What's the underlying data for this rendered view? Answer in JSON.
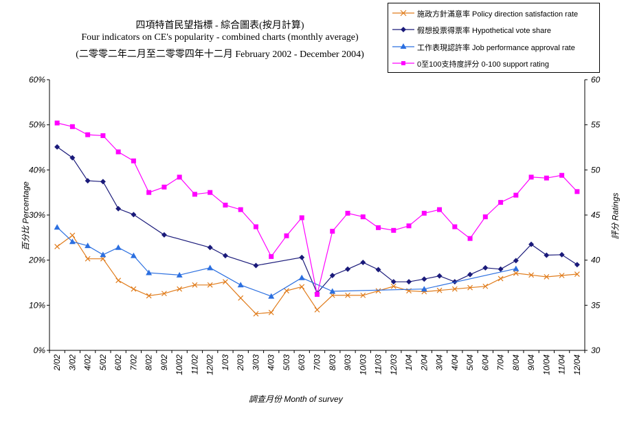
{
  "chart_data": {
    "type": "line",
    "title_lines": [
      "四項特首民望指標 - 綜合圖表(按月計算)",
      "Four indicators on CE's popularity - combined charts (monthly average)",
      "(二零零二年二月至二零零四年十二月 February 2002 - December 2004)"
    ],
    "xlabel": "調查月份  Month of survey",
    "ylabel_left": "百分比  Percentage",
    "ylabel_right": "評分  Ratings",
    "ylim_left": [
      0,
      60
    ],
    "ylim_right": [
      30,
      60
    ],
    "yticks_left": [
      "0%",
      "10%",
      "20%",
      "30%",
      "40%",
      "50%",
      "60%"
    ],
    "yticks_right": [
      "30",
      "35",
      "40",
      "45",
      "50",
      "55",
      "60"
    ],
    "categories": [
      "2/02",
      "3/02",
      "4/02",
      "5/02",
      "6/02",
      "7/02",
      "8/02",
      "9/02",
      "10/02",
      "11/02",
      "12/02",
      "1/03",
      "2/03",
      "3/03",
      "4/03",
      "5/03",
      "6/03",
      "7/03",
      "8/03",
      "9/03",
      "10/03",
      "11/03",
      "12/03",
      "1/04",
      "2/04",
      "3/04",
      "4/04",
      "5/04",
      "6/04",
      "7/04",
      "8/04",
      "9/04",
      "10/04",
      "11/04",
      "12/04"
    ],
    "legend_position": "top-right",
    "series": [
      {
        "name": "施政方針滿意率 Policy direction satisfaction rate",
        "axis": "left",
        "color": "#e07b1a",
        "marker": "x",
        "values": [
          23.0,
          25.5,
          20.3,
          20.3,
          15.5,
          13.6,
          12.1,
          12.6,
          13.6,
          14.5,
          14.5,
          15.2,
          11.6,
          8.1,
          8.4,
          13.2,
          14.1,
          9.0,
          12.2,
          12.2,
          12.2,
          13.2,
          14.2,
          13.2,
          13.0,
          13.3,
          13.6,
          13.9,
          14.2,
          15.9,
          17.1,
          16.7,
          16.3,
          16.6,
          16.9
        ]
      },
      {
        "name": "假想投票得票率 Hypothetical vote share",
        "axis": "left",
        "color": "#1a1a7a",
        "marker": "diamond",
        "values": [
          45.1,
          42.7,
          37.6,
          37.4,
          31.4,
          30.1,
          null,
          25.6,
          null,
          null,
          22.8,
          21.0,
          null,
          18.8,
          null,
          null,
          20.6,
          12.7,
          16.6,
          18.0,
          19.5,
          17.9,
          15.2,
          15.2,
          15.8,
          16.5,
          15.2,
          16.8,
          18.3,
          18.0,
          19.9,
          23.5,
          21.1,
          21.2,
          19.0
        ]
      },
      {
        "name": "工作表現認許率 Job performance approval rate",
        "axis": "left",
        "color": "#2b6fe0",
        "marker": "triangle",
        "values": [
          27.3,
          24.1,
          23.2,
          21.2,
          22.8,
          21.0,
          17.2,
          null,
          16.7,
          null,
          18.3,
          null,
          14.5,
          null,
          12.0,
          null,
          16.1,
          null,
          13.1,
          null,
          null,
          null,
          null,
          null,
          13.6,
          null,
          null,
          null,
          null,
          null,
          18.1,
          null,
          null,
          null,
          null
        ]
      },
      {
        "name": "0至100支持度評分 0-100 support rating",
        "axis": "right",
        "color": "#ff00ff",
        "marker": "square",
        "values": [
          55.2,
          54.8,
          53.9,
          53.8,
          52.0,
          51.0,
          47.5,
          48.1,
          49.2,
          47.3,
          47.5,
          46.1,
          45.6,
          43.7,
          40.4,
          42.7,
          44.7,
          36.2,
          43.2,
          45.2,
          44.8,
          43.6,
          43.3,
          43.8,
          45.2,
          45.6,
          43.7,
          42.4,
          44.8,
          46.4,
          47.2,
          49.2,
          49.1,
          49.4,
          47.6
        ]
      }
    ]
  }
}
